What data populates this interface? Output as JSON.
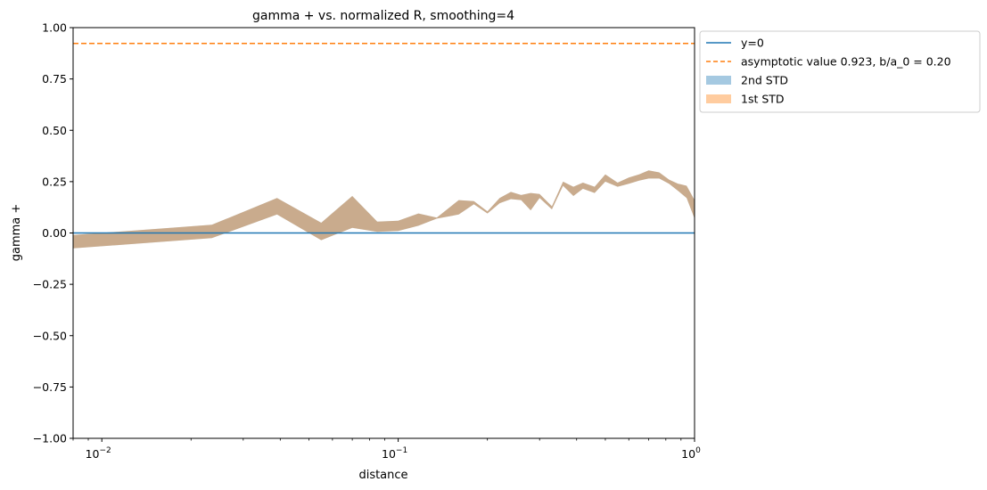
{
  "chart_data": {
    "type": "area",
    "title": "gamma + vs. normalized R, smoothing=4",
    "xlabel": "distance",
    "ylabel": "gamma +",
    "xscale": "log",
    "xlim": [
      0.008,
      1.0
    ],
    "ylim": [
      -1.0,
      1.0
    ],
    "x_ticks": [
      {
        "value": 0.01,
        "base": "10",
        "exp": "−2"
      },
      {
        "value": 0.1,
        "base": "10",
        "exp": "−1"
      },
      {
        "value": 1.0,
        "base": "10",
        "exp": "0"
      }
    ],
    "y_ticks": [
      {
        "value": 1.0,
        "label": "1.00"
      },
      {
        "value": 0.75,
        "label": "0.75"
      },
      {
        "value": 0.5,
        "label": "0.50"
      },
      {
        "value": 0.25,
        "label": "0.25"
      },
      {
        "value": 0.0,
        "label": "0.00"
      },
      {
        "value": -0.25,
        "label": "−0.25"
      },
      {
        "value": -0.5,
        "label": "−0.50"
      },
      {
        "value": -0.75,
        "label": "−0.75"
      },
      {
        "value": -1.0,
        "label": "−1.00"
      }
    ],
    "grid": false,
    "legend_position": "outside-upper-right",
    "series": [
      {
        "name": "y=0",
        "kind": "hline",
        "y": 0.0,
        "color": "#1f77b4",
        "dash": "solid"
      },
      {
        "name": "asymptotic value 0.923, b/a_0 = 0.20",
        "kind": "hline",
        "y": 0.923,
        "color": "#ff7f0e",
        "dash": "dashed"
      },
      {
        "name": "2nd STD",
        "kind": "band",
        "color": "#1f77b4",
        "opacity": 0.4,
        "x": [
          0.008,
          0.0235,
          0.039,
          0.055,
          0.07,
          0.085,
          0.1,
          0.117,
          0.135,
          0.16,
          0.18,
          0.2,
          0.22,
          0.24,
          0.26,
          0.28,
          0.3,
          0.33,
          0.36,
          0.39,
          0.42,
          0.46,
          0.5,
          0.55,
          0.6,
          0.65,
          0.7,
          0.76,
          0.82,
          0.88,
          0.94,
          1.0
        ],
        "upper": [
          -0.01,
          0.04,
          0.17,
          0.05,
          0.18,
          0.055,
          0.06,
          0.095,
          0.075,
          0.16,
          0.155,
          0.105,
          0.17,
          0.2,
          0.185,
          0.195,
          0.19,
          0.13,
          0.25,
          0.225,
          0.245,
          0.225,
          0.285,
          0.245,
          0.27,
          0.285,
          0.305,
          0.295,
          0.26,
          0.24,
          0.23,
          0.16
        ],
        "lower": [
          -0.075,
          -0.025,
          0.09,
          -0.035,
          0.025,
          0.005,
          0.01,
          0.035,
          0.07,
          0.09,
          0.14,
          0.095,
          0.145,
          0.165,
          0.16,
          0.11,
          0.17,
          0.115,
          0.23,
          0.18,
          0.215,
          0.195,
          0.25,
          0.225,
          0.24,
          0.255,
          0.265,
          0.265,
          0.24,
          0.205,
          0.17,
          0.07
        ]
      },
      {
        "name": "1st STD",
        "kind": "band",
        "color": "#ff7f0e",
        "opacity": 0.4,
        "x": [
          0.008,
          0.0235,
          0.039,
          0.055,
          0.07,
          0.085,
          0.1,
          0.117,
          0.135,
          0.16,
          0.18,
          0.2,
          0.22,
          0.24,
          0.26,
          0.28,
          0.3,
          0.33,
          0.36,
          0.39,
          0.42,
          0.46,
          0.5,
          0.55,
          0.6,
          0.65,
          0.7,
          0.76,
          0.82,
          0.88,
          0.94,
          1.0
        ],
        "upper": [
          -0.01,
          0.04,
          0.17,
          0.05,
          0.18,
          0.055,
          0.06,
          0.095,
          0.075,
          0.16,
          0.155,
          0.105,
          0.17,
          0.2,
          0.185,
          0.195,
          0.19,
          0.13,
          0.25,
          0.225,
          0.245,
          0.225,
          0.285,
          0.245,
          0.27,
          0.285,
          0.305,
          0.295,
          0.26,
          0.24,
          0.23,
          0.16
        ],
        "lower": [
          -0.075,
          -0.025,
          0.09,
          -0.035,
          0.025,
          0.005,
          0.01,
          0.035,
          0.07,
          0.09,
          0.14,
          0.095,
          0.145,
          0.165,
          0.16,
          0.11,
          0.17,
          0.115,
          0.23,
          0.18,
          0.215,
          0.195,
          0.25,
          0.225,
          0.24,
          0.255,
          0.265,
          0.265,
          0.24,
          0.205,
          0.17,
          0.07
        ]
      }
    ]
  }
}
